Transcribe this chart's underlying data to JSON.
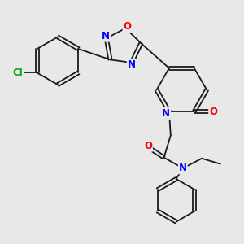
{
  "bg_color": "#e8e8e8",
  "bond_color": "#1a1a1a",
  "atom_colors": {
    "N": "#0000ff",
    "O": "#ff0000",
    "Cl": "#00aa00",
    "C": "#1a1a1a"
  },
  "lw": 1.3,
  "fs": 8.5
}
